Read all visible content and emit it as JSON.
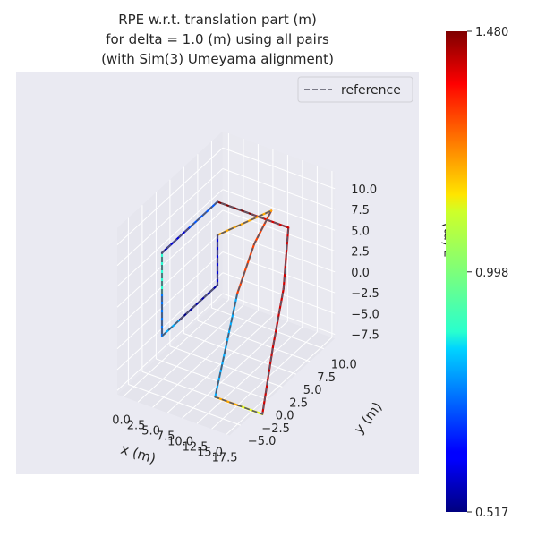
{
  "chart_data": {
    "type": "line",
    "projection": "3d",
    "title": [
      "RPE w.r.t. translation part (m)",
      "for delta = 1.0 (m) using all pairs",
      "(with Sim(3) Umeyama alignment)"
    ],
    "xlabel": "x (m)",
    "ylabel": "y (m)",
    "zlabel": "z (m)",
    "xlim": [
      -1,
      18
    ],
    "ylim": [
      -7,
      12
    ],
    "zlim": [
      -8,
      12
    ],
    "xticks": [
      "0.0",
      "2.5",
      "5.0",
      "7.5",
      "10.0",
      "12.5",
      "15.0",
      "17.5"
    ],
    "yticks": [
      "−5.0",
      "−2.5",
      "0.0",
      "2.5",
      "5.0",
      "7.5",
      "10.0"
    ],
    "zticks": [
      "−7.5",
      "−5.0",
      "−2.5",
      "0.0",
      "2.5",
      "5.0",
      "7.5",
      "10.0"
    ],
    "grid": true,
    "legend": {
      "position": "top-right",
      "entries": [
        "reference"
      ]
    },
    "colorbar": {
      "colormap": "jet",
      "min": 0.517,
      "max": 1.48,
      "ticks": [
        "0.517",
        "0.998",
        "1.480"
      ]
    },
    "series": [
      {
        "name": "reference",
        "style": "dashed",
        "points": [
          [
            0,
            0,
            0
          ],
          [
            0,
            0,
            5
          ],
          [
            0,
            1,
            5
          ],
          [
            0,
            5,
            5
          ],
          [
            0,
            10,
            5
          ],
          [
            6,
            10,
            5
          ],
          [
            12,
            10,
            5
          ],
          [
            14,
            7,
            0
          ],
          [
            15,
            4,
            -5
          ],
          [
            17,
            0,
            -10
          ],
          [
            13,
            0,
            -10
          ],
          [
            9,
            0,
            -10
          ],
          [
            9,
            2,
            -5
          ],
          [
            9,
            4,
            0
          ],
          [
            10,
            6,
            5
          ],
          [
            11,
            8,
            8
          ],
          [
            0,
            10,
            1
          ],
          [
            0,
            10,
            -5
          ],
          [
            0,
            5,
            -5
          ],
          [
            0,
            3,
            -5
          ],
          [
            0,
            0,
            -5
          ],
          [
            0,
            0,
            0
          ]
        ]
      }
    ],
    "rpe_segments": [
      0.92,
      0.55,
      0.6,
      0.72,
      1.48,
      1.4,
      1.4,
      1.4,
      1.4,
      1.1,
      1.2,
      0.8,
      0.8,
      1.3,
      1.3,
      1.2,
      0.6,
      0.55,
      0.52,
      0.8,
      0.75
    ]
  }
}
